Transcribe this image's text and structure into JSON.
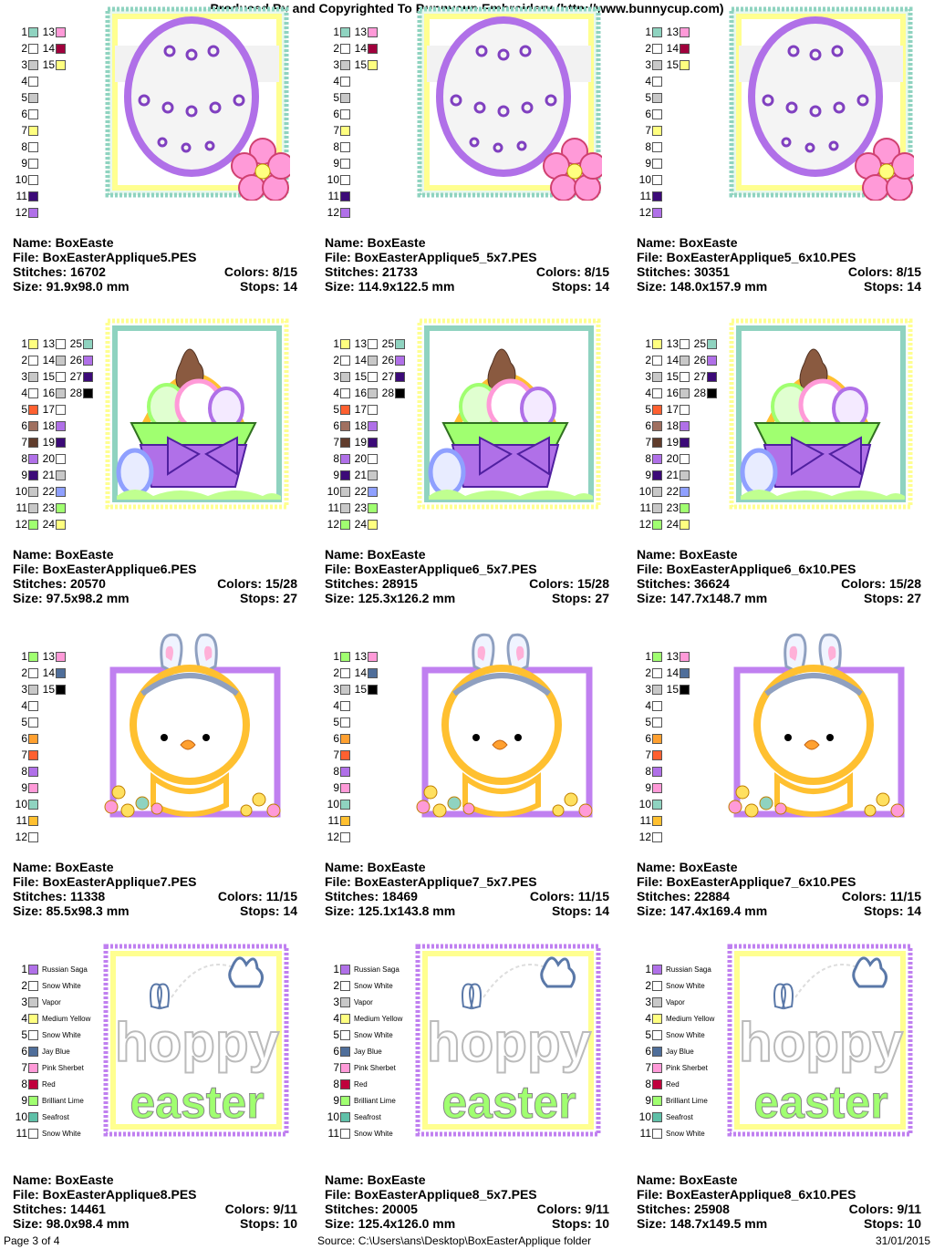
{
  "header": "Produced By and Copyrighted To Bunnycup Embroidery (http://www.bunnycup.com)",
  "footer": {
    "page": "Page 3 of 4",
    "source": "Source: C:\\Users\\ans\\Desktop\\BoxEasterApplique folder",
    "date": "31/01/2015"
  },
  "labels": {
    "name": "Name:",
    "file": "File:",
    "stitches": "Stitches:",
    "size": "Size:",
    "colors": "Colors:",
    "stops": "Stops:"
  },
  "palettes": {
    "egg": [
      [
        "#8fd3c0",
        "#ffffff",
        "#c8c8c8",
        "#ffffff",
        "#c8c8c8",
        "#ffffff",
        "#ffff80",
        "#ffffff",
        "#ffffff",
        "#ffffff",
        "#3c0a78",
        "#b070e8"
      ],
      [
        "#ff9ad8",
        "#a0003c",
        "#ffff80"
      ]
    ],
    "basket": [
      [
        "#ffff80",
        "#ffffff",
        "#c8c8c8",
        "#ffffff",
        "#ff6030",
        "#a07060",
        "#603c2c",
        "#b070e8",
        "#3c0a78",
        "#c8c8c8",
        "#c8c8c8",
        "#a0ff70"
      ],
      [
        "#ffffff",
        "#c8c8c8",
        "#ffffff",
        "#c8c8c8",
        "#ffffff",
        "#b070e8",
        "#3c0a78",
        "#ffffff",
        "#c8c8c8",
        "#8fa0ff",
        "#a0ff70",
        "#ffff80"
      ],
      [
        "#8fd3c0",
        "#b070e8",
        "#3c0a78",
        "#000000",
        "",
        "",
        "",
        "",
        "",
        "",
        "",
        "",
        ""
      ]
    ],
    "chick": [
      [
        "#a0ff70",
        "#ffffff",
        "#c8c8c8",
        "#ffffff",
        "#ffffff",
        "#ffa030",
        "#ff6030",
        "#b070e8",
        "#ff9ad8",
        "#8fd3c0",
        "#ffc030",
        "#ffffff"
      ],
      [
        "#ff9ad8",
        "#4f6e9a",
        "#000000"
      ]
    ],
    "hoppy": [
      [
        "#b070e8",
        "Russian Saga"
      ],
      [
        "#ffffff",
        "Snow White"
      ],
      [
        "#c8c8c8",
        "Vapor"
      ],
      [
        "#ffff80",
        "Medium Yellow"
      ],
      [
        "#ffffff",
        "Snow White"
      ],
      [
        "#4f6e9a",
        "Jay Blue"
      ],
      [
        "#ff9ad8",
        "Pink Sherbet"
      ],
      [
        "#c0003c",
        "Red"
      ],
      [
        "#a0ff70",
        "Brilliant Lime"
      ],
      [
        "#5fc0a8",
        "Seafrost"
      ],
      [
        "#ffffff",
        "Snow White"
      ]
    ]
  },
  "designs": [
    {
      "name": "BoxEaste",
      "file": "BoxEasterApplique5.PES",
      "stitches": "16702",
      "colors": "8/15",
      "size": "91.9x98.0 mm",
      "stops": "14",
      "art": "egg"
    },
    {
      "name": "BoxEaste",
      "file": "BoxEasterApplique5_5x7.PES",
      "stitches": "21733",
      "colors": "8/15",
      "size": "114.9x122.5 mm",
      "stops": "14",
      "art": "egg"
    },
    {
      "name": "BoxEaste",
      "file": "BoxEasterApplique5_6x10.PES",
      "stitches": "30351",
      "colors": "8/15",
      "size": "148.0x157.9 mm",
      "stops": "14",
      "art": "egg"
    },
    {
      "name": "BoxEaste",
      "file": "BoxEasterApplique6.PES",
      "stitches": "20570",
      "colors": "15/28",
      "size": "97.5x98.2 mm",
      "stops": "27",
      "art": "basket"
    },
    {
      "name": "BoxEaste",
      "file": "BoxEasterApplique6_5x7.PES",
      "stitches": "28915",
      "colors": "15/28",
      "size": "125.3x126.2 mm",
      "stops": "27",
      "art": "basket"
    },
    {
      "name": "BoxEaste",
      "file": "BoxEasterApplique6_6x10.PES",
      "stitches": "36624",
      "colors": "15/28",
      "size": "147.7x148.7 mm",
      "stops": "27",
      "art": "basket"
    },
    {
      "name": "BoxEaste",
      "file": "BoxEasterApplique7.PES",
      "stitches": "11338",
      "colors": "11/15",
      "size": "85.5x98.3 mm",
      "stops": "14",
      "art": "chick"
    },
    {
      "name": "BoxEaste",
      "file": "BoxEasterApplique7_5x7.PES",
      "stitches": "18469",
      "colors": "11/15",
      "size": "125.1x143.8 mm",
      "stops": "14",
      "art": "chick"
    },
    {
      "name": "BoxEaste",
      "file": "BoxEasterApplique7_6x10.PES",
      "stitches": "22884",
      "colors": "11/15",
      "size": "147.4x169.4 mm",
      "stops": "14",
      "art": "chick"
    },
    {
      "name": "BoxEaste",
      "file": "BoxEasterApplique8.PES",
      "stitches": "14461",
      "colors": "9/11",
      "size": "98.0x98.4 mm",
      "stops": "10",
      "art": "hoppy"
    },
    {
      "name": "BoxEaste",
      "file": "BoxEasterApplique8_5x7.PES",
      "stitches": "20005",
      "colors": "9/11",
      "size": "125.4x126.0 mm",
      "stops": "10",
      "art": "hoppy"
    },
    {
      "name": "BoxEaste",
      "file": "BoxEasterApplique8_6x10.PES",
      "stitches": "25908",
      "colors": "9/11",
      "size": "148.7x149.5 mm",
      "stops": "10",
      "art": "hoppy"
    }
  ],
  "art_text": {
    "hoppy_line1": "hoppy",
    "hoppy_line2": "easter"
  }
}
